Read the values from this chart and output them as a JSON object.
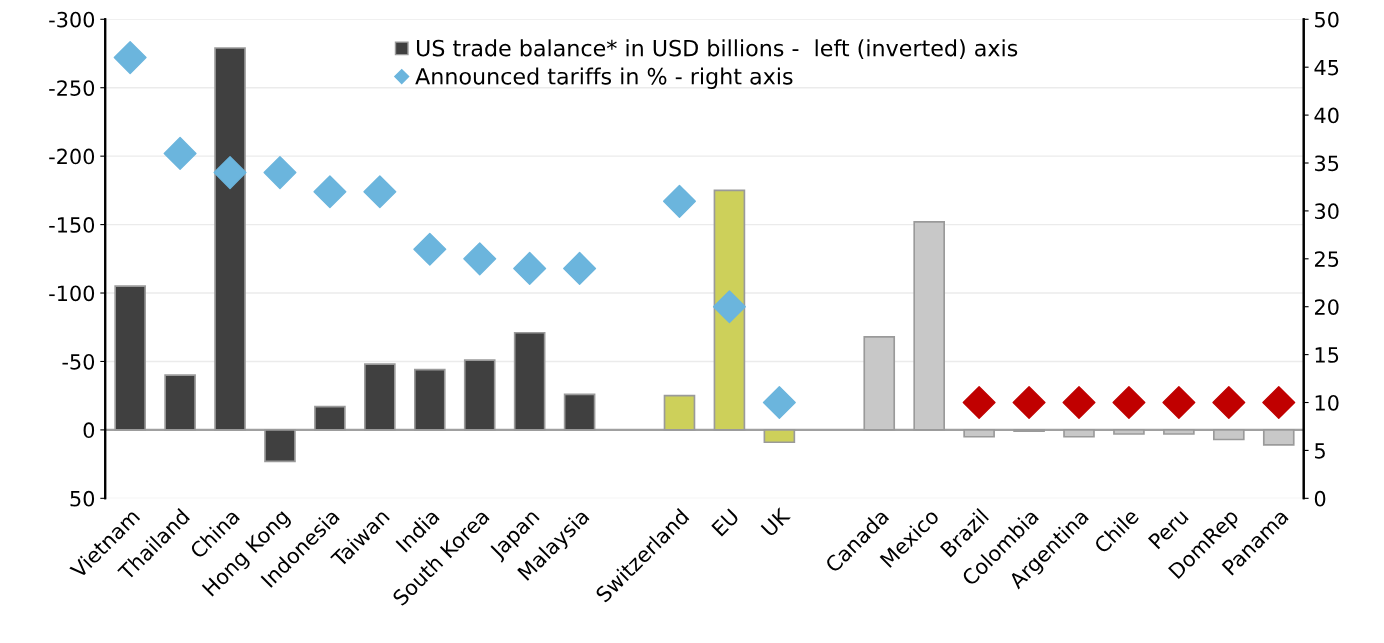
{
  "chart_data": {
    "type": "bar",
    "categories": [
      "Vietnam",
      "Thailand",
      "China",
      "Hong Kong",
      "Indonesia",
      "Taiwan",
      "India",
      "South Korea",
      "Japan",
      "Malaysia",
      null,
      "Switzerland",
      "EU",
      "UK",
      null,
      "Canada",
      "Mexico",
      "Brazil",
      "Colombia",
      "Argentina",
      "Chile",
      "Peru",
      "DomRep",
      "Panama"
    ],
    "series": [
      {
        "name": "US trade balance* in USD billions -  left (inverted) axis",
        "color": "#404040",
        "colors": [
          "#404040",
          "#404040",
          "#404040",
          "#404040",
          "#404040",
          "#404040",
          "#404040",
          "#404040",
          "#404040",
          "#404040",
          null,
          "#cdd05a",
          "#cdd05a",
          "#cdd05a",
          null,
          "#c8c8c8",
          "#c8c8c8",
          "#c8c8c8",
          "#c8c8c8",
          "#c8c8c8",
          "#c8c8c8",
          "#c8c8c8",
          "#c8c8c8",
          "#c8c8c8"
        ],
        "values": [
          -105,
          -40,
          -279,
          23,
          -17,
          -48,
          -44,
          -51,
          -71,
          -26,
          null,
          -25,
          -175,
          9,
          null,
          -68,
          -152,
          5,
          1,
          5,
          3,
          3,
          7,
          11
        ]
      },
      {
        "name": "Announced tariffs in % - right axis",
        "type": "scatter",
        "axis": "y2",
        "marker": "diamond",
        "color": "#6bb5dd",
        "colors": [
          "#6bb5dd",
          "#6bb5dd",
          "#6bb5dd",
          "#6bb5dd",
          "#6bb5dd",
          "#6bb5dd",
          "#6bb5dd",
          "#6bb5dd",
          "#6bb5dd",
          "#6bb5dd",
          null,
          "#6bb5dd",
          "#6bb5dd",
          "#6bb5dd",
          null,
          null,
          null,
          "#c00000",
          "#c00000",
          "#c00000",
          "#c00000",
          "#c00000",
          "#c00000",
          "#c00000"
        ],
        "values": [
          46,
          36,
          34,
          34,
          32,
          32,
          26,
          25,
          24,
          24,
          null,
          31,
          20,
          10,
          null,
          null,
          null,
          10,
          10,
          10,
          10,
          10,
          10,
          10
        ]
      }
    ],
    "ylim": [
      50,
      -300
    ],
    "yticks": [
      -300,
      -250,
      -200,
      -150,
      -100,
      -50,
      0,
      50
    ],
    "y2lim": [
      0,
      50
    ],
    "y2ticks": [
      0,
      5,
      10,
      15,
      20,
      25,
      30,
      35,
      40,
      45,
      50
    ],
    "ref_lines": [
      {
        "axis": "y",
        "value": 0,
        "color": "#a0a0a0"
      }
    ],
    "grid": "y",
    "legend": "top"
  }
}
